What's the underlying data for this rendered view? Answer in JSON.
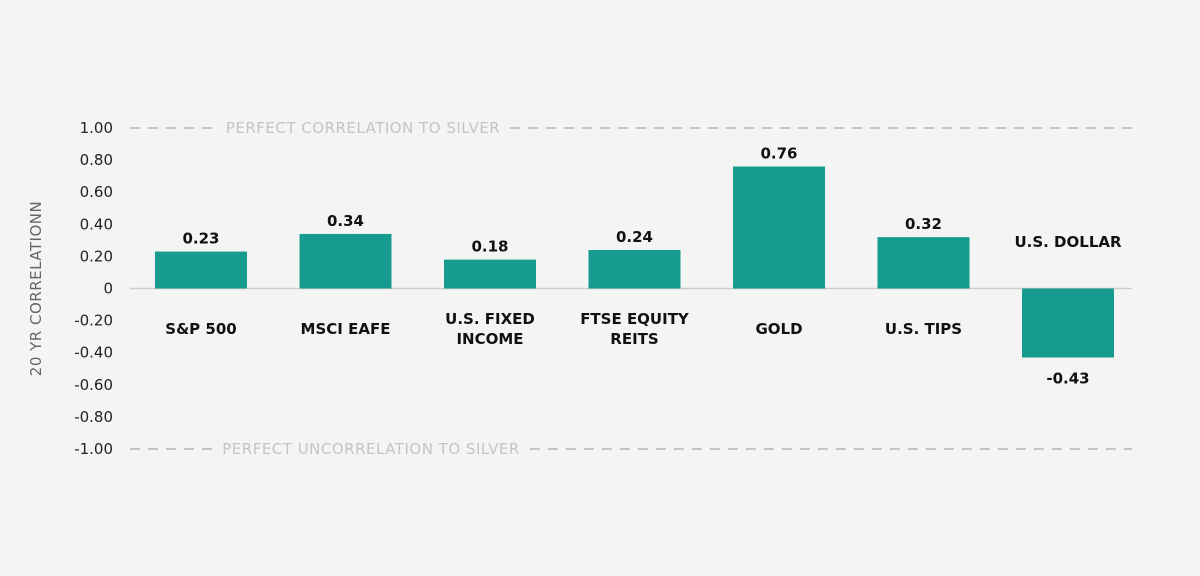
{
  "chart_data": {
    "type": "bar",
    "title": "",
    "xlabel": "",
    "ylabel": "20 YR CORRELATIONN",
    "ylim": [
      -1.0,
      1.0
    ],
    "yticks": [
      "1.00",
      "0.80",
      "0.60",
      "0.40",
      "0.20",
      "0",
      "-0.20",
      "-0.40",
      "-0.60",
      "-0.80",
      "-1.00"
    ],
    "categories": [
      [
        "S&P 500"
      ],
      [
        "MSCI EAFE"
      ],
      [
        "U.S. FIXED",
        "INCOME"
      ],
      [
        "FTSE EQUITY",
        "REITS"
      ],
      [
        "GOLD"
      ],
      [
        "U.S. TIPS"
      ],
      [
        "U.S. DOLLAR"
      ]
    ],
    "values": [
      0.23,
      0.34,
      0.18,
      0.24,
      0.76,
      0.32,
      -0.43
    ],
    "value_labels": [
      "0.23",
      "0.34",
      "0.18",
      "0.24",
      "0.76",
      "0.32",
      "-0.43"
    ],
    "reference_lines": [
      {
        "value": 1.0,
        "label": "PERFECT CORRELATION TO SILVER"
      },
      {
        "value": -1.0,
        "label": "PERFECT UNCORRELATION TO SILVER"
      }
    ],
    "colors": {
      "bar": "#169b8e",
      "background": "#f4f4f4",
      "reference": "#c4c4c4",
      "zero_line": "#cccccc"
    },
    "grid": false
  }
}
